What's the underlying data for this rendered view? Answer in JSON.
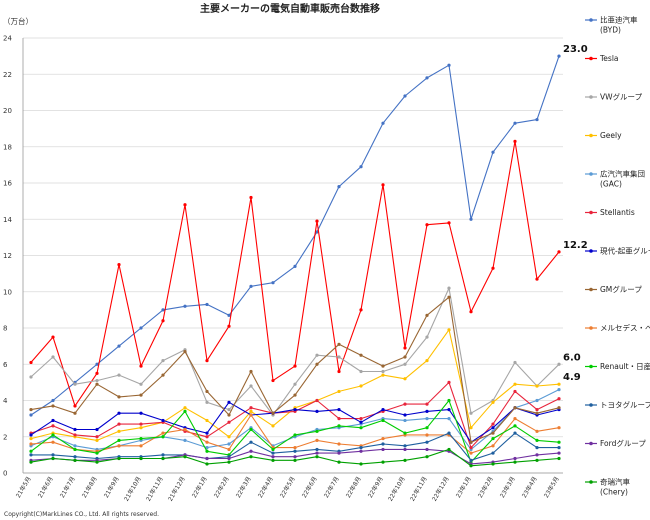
{
  "chart_data": {
    "type": "line",
    "title": "主要メーカーの電気自動車販売台数推移",
    "ylabel": "（万台）",
    "ylim": [
      0,
      24
    ],
    "yticks": [
      0,
      2,
      4,
      6,
      8,
      10,
      12,
      14,
      16,
      18,
      20,
      22,
      24
    ],
    "grid": "horizontal",
    "legend_position": "right",
    "categories": [
      "21年5月",
      "21年6月",
      "21年7月",
      "21年8月",
      "21年9月",
      "21年10月",
      "21年11月",
      "21年12月",
      "22年1月",
      "22年2月",
      "22年3月",
      "22年4月",
      "22年5月",
      "22年6月",
      "22年7月",
      "22年8月",
      "22年9月",
      "22年10月",
      "22年11月",
      "22年12月",
      "23年1月",
      "23年2月",
      "23年3月",
      "23年4月",
      "23年5月"
    ],
    "series": [
      {
        "name": "比亜迪汽車(BYD)",
        "color": "#4472C4",
        "values": [
          3.2,
          4.0,
          5.0,
          6.0,
          7.0,
          8.0,
          9.0,
          9.2,
          9.3,
          8.7,
          10.3,
          10.5,
          11.4,
          13.3,
          15.8,
          16.9,
          19.3,
          20.8,
          21.8,
          22.5,
          14.0,
          17.7,
          19.3,
          19.5,
          23.0
        ]
      },
      {
        "name": "Tesla",
        "color": "#FF0000",
        "values": [
          6.1,
          7.5,
          3.7,
          5.5,
          11.5,
          5.9,
          8.4,
          14.8,
          6.2,
          8.1,
          15.2,
          5.1,
          5.9,
          13.9,
          5.6,
          9.0,
          15.9,
          6.9,
          13.7,
          13.8,
          8.9,
          11.3,
          18.3,
          10.7,
          12.2
        ]
      },
      {
        "name": "VWグループ",
        "color": "#A6A6A6",
        "values": [
          5.3,
          6.4,
          4.9,
          5.1,
          5.4,
          4.9,
          6.2,
          6.8,
          3.9,
          3.5,
          4.8,
          3.2,
          4.9,
          6.5,
          6.4,
          5.6,
          5.6,
          6.0,
          7.5,
          10.2,
          3.3,
          4.0,
          6.1,
          4.8,
          6.0
        ]
      },
      {
        "name": "Geely",
        "color": "#FFC000",
        "values": [
          1.9,
          2.2,
          2.0,
          1.8,
          2.3,
          2.5,
          2.8,
          3.6,
          2.9,
          2.0,
          3.4,
          2.6,
          3.6,
          4.0,
          4.5,
          4.8,
          5.4,
          5.2,
          6.2,
          7.9,
          2.5,
          3.9,
          4.9,
          4.8,
          4.9
        ]
      },
      {
        "name": "広汽汽車集団(GAC)",
        "color": "#5B9BD5",
        "values": [
          1.5,
          2.0,
          1.5,
          1.3,
          1.5,
          1.8,
          2.0,
          1.8,
          1.4,
          1.6,
          2.5,
          1.5,
          2.0,
          2.4,
          2.5,
          2.7,
          3.0,
          2.9,
          3.0,
          3.0,
          1.3,
          2.3,
          3.6,
          4.0,
          4.6
        ]
      },
      {
        "name": "Stellantis",
        "color": "#E8253C",
        "values": [
          2.2,
          2.6,
          2.1,
          2.0,
          2.7,
          2.7,
          2.8,
          2.3,
          2.0,
          2.8,
          3.6,
          3.3,
          3.4,
          4.0,
          3.0,
          3.0,
          3.4,
          3.8,
          3.8,
          5.0,
          1.4,
          2.7,
          4.5,
          3.5,
          4.1
        ]
      },
      {
        "name": "現代-起亜グループ",
        "color": "#0000CC",
        "values": [
          2.1,
          2.9,
          2.4,
          2.4,
          3.3,
          3.3,
          2.9,
          2.5,
          2.2,
          3.9,
          3.2,
          3.3,
          3.5,
          3.4,
          3.5,
          2.8,
          3.5,
          3.2,
          3.4,
          3.5,
          1.7,
          2.5,
          3.6,
          3.2,
          3.5
        ]
      },
      {
        "name": "GMグループ",
        "color": "#996633",
        "values": [
          3.5,
          3.7,
          3.3,
          4.9,
          4.2,
          4.3,
          5.4,
          6.7,
          4.5,
          3.2,
          5.6,
          3.3,
          4.3,
          6.0,
          7.1,
          6.5,
          5.9,
          6.4,
          8.7,
          9.7,
          1.7,
          2.2,
          3.6,
          3.3,
          3.6
        ]
      },
      {
        "name": "メルセデス・ベンツグループ",
        "color": "#ED7D31",
        "values": [
          1.6,
          1.7,
          1.3,
          1.2,
          1.5,
          1.5,
          2.2,
          2.4,
          1.7,
          1.3,
          3.2,
          1.4,
          1.4,
          1.8,
          1.6,
          1.5,
          1.9,
          2.1,
          2.1,
          2.1,
          1.1,
          1.5,
          3.0,
          2.3,
          2.5
        ]
      },
      {
        "name": "Renault・日産",
        "color": "#00CC00",
        "values": [
          1.2,
          2.1,
          1.3,
          1.1,
          1.8,
          1.9,
          2.0,
          3.4,
          1.2,
          1.0,
          2.4,
          1.3,
          2.1,
          2.3,
          2.6,
          2.5,
          2.9,
          2.2,
          2.5,
          4.0,
          0.6,
          1.9,
          2.6,
          1.8,
          1.7
        ]
      },
      {
        "name": "トヨタグループ",
        "color": "#1F5F9F",
        "values": [
          1.0,
          1.0,
          0.9,
          0.8,
          0.9,
          0.9,
          1.0,
          1.0,
          0.8,
          0.9,
          1.7,
          1.1,
          1.2,
          1.3,
          1.2,
          1.4,
          1.6,
          1.5,
          1.7,
          2.2,
          0.7,
          1.1,
          2.2,
          1.4,
          1.4
        ]
      },
      {
        "name": "Fordグループ",
        "color": "#7030A0",
        "values": [
          0.7,
          0.8,
          0.7,
          0.7,
          0.8,
          0.8,
          0.8,
          1.0,
          0.8,
          0.8,
          1.2,
          0.9,
          0.9,
          1.1,
          1.1,
          1.2,
          1.3,
          1.3,
          1.3,
          1.2,
          0.5,
          0.6,
          0.8,
          1.0,
          1.1
        ]
      },
      {
        "name": "奇瑞汽車(Chery)",
        "color": "#00A000",
        "values": [
          0.6,
          0.8,
          0.7,
          0.6,
          0.8,
          0.8,
          0.8,
          0.9,
          0.5,
          0.6,
          0.9,
          0.7,
          0.7,
          0.9,
          0.6,
          0.5,
          0.6,
          0.7,
          0.9,
          1.3,
          0.4,
          0.5,
          0.6,
          0.7,
          0.8
        ]
      }
    ],
    "annotations": [
      {
        "series": "比亜迪汽車(BYD)",
        "label": "23.0"
      },
      {
        "series": "Tesla",
        "label": "12.2"
      },
      {
        "series": "VWグループ",
        "label": "6.0"
      },
      {
        "series": "Geely",
        "label": "4.9"
      }
    ],
    "copyright": "Copyright(C)MarkLines CO., Ltd. All rights reserved."
  }
}
